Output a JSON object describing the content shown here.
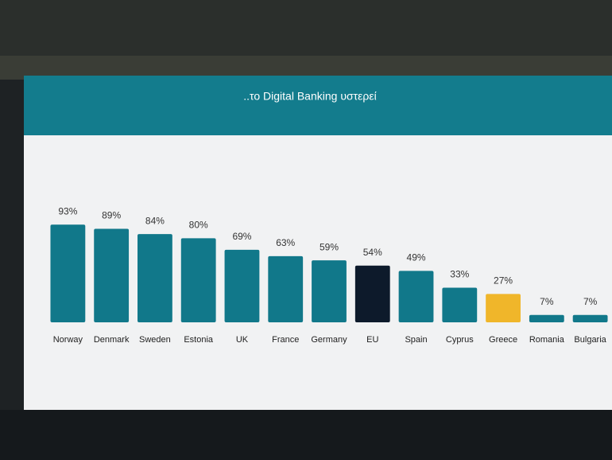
{
  "chart_data": {
    "type": "bar",
    "title": "..το Digital Banking υστερεί",
    "categories": [
      "Norway",
      "Denmark",
      "Sweden",
      "Estonia",
      "UK",
      "France",
      "Germany",
      "EU",
      "Spain",
      "Cyprus",
      "Greece",
      "Romania",
      "Bulgaria"
    ],
    "values": [
      93,
      89,
      84,
      80,
      69,
      63,
      59,
      54,
      49,
      33,
      27,
      7,
      7
    ],
    "value_labels": [
      "93%",
      "89%",
      "84%",
      "80%",
      "69%",
      "63%",
      "59%",
      "54%",
      "49%",
      "33%",
      "27%",
      "7%",
      "7%"
    ],
    "colors": [
      "#11788a",
      "#11788a",
      "#11788a",
      "#11788a",
      "#11788a",
      "#11788a",
      "#11788a",
      "#0d1a2b",
      "#11788a",
      "#11788a",
      "#f0b62a",
      "#11788a",
      "#11788a"
    ]
  }
}
